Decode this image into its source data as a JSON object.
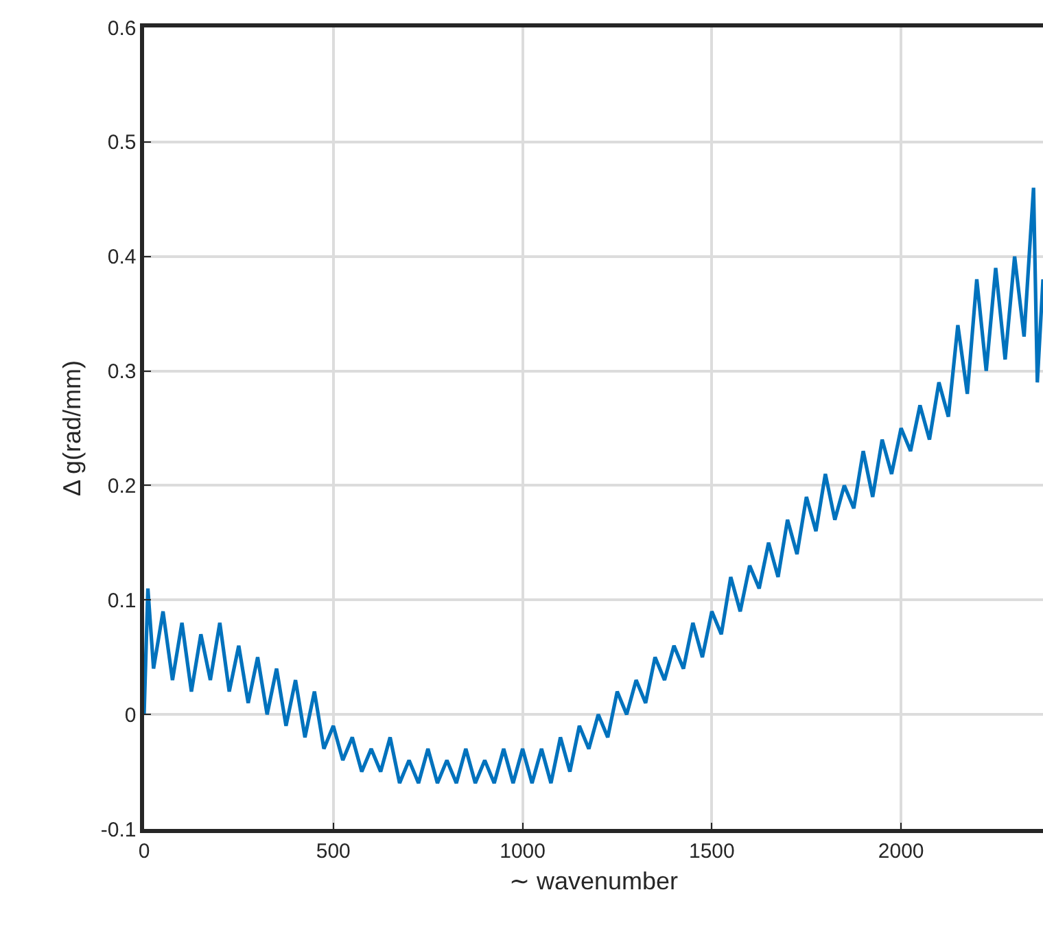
{
  "chart_data": {
    "type": "line",
    "xlabel": "∼ wavenumber",
    "ylabel": "Δ g(rad/mm)",
    "x": [
      0,
      10,
      25,
      50,
      75,
      100,
      125,
      150,
      175,
      200,
      225,
      250,
      275,
      300,
      325,
      350,
      375,
      400,
      425,
      450,
      475,
      500,
      525,
      550,
      575,
      600,
      625,
      650,
      675,
      700,
      725,
      750,
      775,
      800,
      825,
      850,
      875,
      900,
      925,
      950,
      975,
      1000,
      1025,
      1050,
      1075,
      1100,
      1125,
      1150,
      1175,
      1200,
      1225,
      1250,
      1275,
      1300,
      1325,
      1350,
      1375,
      1400,
      1425,
      1450,
      1475,
      1500,
      1525,
      1550,
      1575,
      1600,
      1625,
      1650,
      1675,
      1700,
      1725,
      1750,
      1775,
      1800,
      1825,
      1850,
      1875,
      1900,
      1925,
      1950,
      1975,
      2000,
      2025,
      2050,
      2075,
      2100,
      2125,
      2150,
      2175,
      2200,
      2225,
      2250,
      2275,
      2300,
      2325,
      2350,
      2360,
      2375
    ],
    "series": [
      {
        "color": "#0072bd",
        "values": [
          0.0,
          0.11,
          0.04,
          0.09,
          0.03,
          0.08,
          0.02,
          0.07,
          0.03,
          0.08,
          0.02,
          0.06,
          0.01,
          0.05,
          0.0,
          0.04,
          -0.01,
          0.03,
          -0.02,
          0.02,
          -0.03,
          -0.01,
          -0.04,
          -0.02,
          -0.05,
          -0.03,
          -0.05,
          -0.02,
          -0.06,
          -0.04,
          -0.06,
          -0.03,
          -0.06,
          -0.04,
          -0.06,
          -0.03,
          -0.06,
          -0.04,
          -0.06,
          -0.03,
          -0.06,
          -0.03,
          -0.06,
          -0.03,
          -0.06,
          -0.02,
          -0.05,
          -0.01,
          -0.03,
          0.0,
          -0.02,
          0.02,
          0.0,
          0.03,
          0.01,
          0.05,
          0.03,
          0.06,
          0.04,
          0.08,
          0.05,
          0.09,
          0.07,
          0.12,
          0.09,
          0.13,
          0.11,
          0.15,
          0.12,
          0.17,
          0.14,
          0.19,
          0.16,
          0.21,
          0.17,
          0.2,
          0.18,
          0.23,
          0.19,
          0.24,
          0.21,
          0.25,
          0.23,
          0.27,
          0.24,
          0.29,
          0.26,
          0.34,
          0.28,
          0.38,
          0.3,
          0.39,
          0.31,
          0.4,
          0.33,
          0.46,
          0.29,
          0.38
        ]
      }
    ],
    "xlim": [
      0,
      2375
    ],
    "xticks": [
      0,
      500,
      1000,
      1500,
      2000
    ],
    "ylim": [
      -0.1,
      0.6
    ],
    "yticks": [
      -0.1,
      0,
      0.1,
      0.2,
      0.3,
      0.4,
      0.5,
      0.6
    ],
    "grid": true,
    "marker": "none",
    "line_style": "solid"
  }
}
